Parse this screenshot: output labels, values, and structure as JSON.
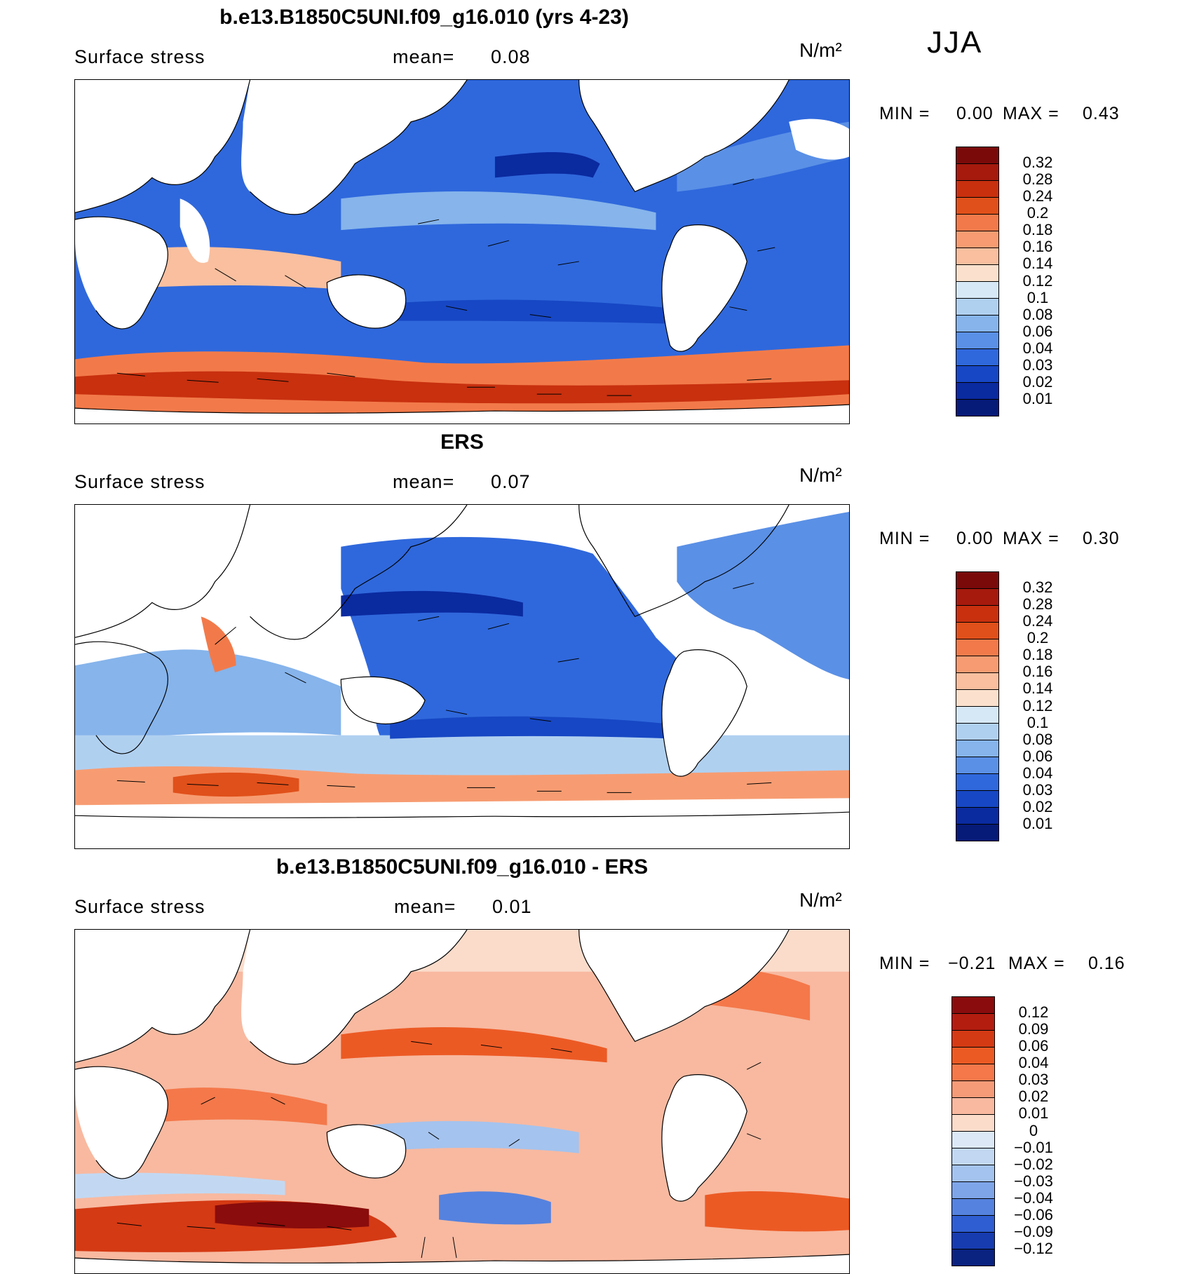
{
  "season": "JJA",
  "panels": [
    {
      "id": "model",
      "title": "b.e13.B1850C5UNI.f09_g16.010 (yrs 4-23)",
      "variable": "Surface stress",
      "mean_label": "mean=",
      "mean_value": "0.08",
      "units": "N/m²",
      "min_label": "MIN =",
      "min_value": "0.00",
      "max_label": "MAX =",
      "max_value": "0.43",
      "colorbar": {
        "ticks": [
          "0.32",
          "0.28",
          "0.24",
          "0.2",
          "0.18",
          "0.16",
          "0.14",
          "0.12",
          "0.1",
          "0.08",
          "0.06",
          "0.04",
          "0.03",
          "0.02",
          "0.01"
        ],
        "colors": [
          "#7a0a0a",
          "#a51a0d",
          "#c8300e",
          "#e0501a",
          "#f27a4a",
          "#f79c72",
          "#f9bf9f",
          "#fbe1cd",
          "#d6e8f6",
          "#b0d0f0",
          "#86b4eb",
          "#5a90e6",
          "#2f68dc",
          "#1747c4",
          "#0a2aa0",
          "#061a78"
        ]
      }
    },
    {
      "id": "obs",
      "title": "ERS",
      "variable": "Surface stress",
      "mean_label": "mean=",
      "mean_value": "0.07",
      "units": "N/m²",
      "min_label": "MIN =",
      "min_value": "0.00",
      "max_label": "MAX =",
      "max_value": "0.30",
      "colorbar": {
        "ticks": [
          "0.32",
          "0.28",
          "0.24",
          "0.2",
          "0.18",
          "0.16",
          "0.14",
          "0.12",
          "0.1",
          "0.08",
          "0.06",
          "0.04",
          "0.03",
          "0.02",
          "0.01"
        ],
        "colors": [
          "#7a0a0a",
          "#a51a0d",
          "#c8300e",
          "#e0501a",
          "#f27a4a",
          "#f79c72",
          "#f9bf9f",
          "#fbe1cd",
          "#d6e8f6",
          "#b0d0f0",
          "#86b4eb",
          "#5a90e6",
          "#2f68dc",
          "#1747c4",
          "#0a2aa0",
          "#061a78"
        ]
      }
    },
    {
      "id": "diff",
      "title": "b.e13.B1850C5UNI.f09_g16.010 - ERS",
      "variable": "Surface stress",
      "mean_label": "mean=",
      "mean_value": "0.01",
      "units": "N/m²",
      "min_label": "MIN =",
      "min_value": "−0.21",
      "max_label": "MAX =",
      "max_value": "0.16",
      "colorbar": {
        "ticks": [
          "0.12",
          "0.09",
          "0.06",
          "0.04",
          "0.03",
          "0.02",
          "0.01",
          "0",
          "−0.01",
          "−0.02",
          "−0.03",
          "−0.04",
          "−0.06",
          "−0.09",
          "−0.12"
        ],
        "colors": [
          "#8a0c0c",
          "#b31d10",
          "#d43a14",
          "#ec5a24",
          "#f4784a",
          "#f69b78",
          "#f8b9a0",
          "#fbdccb",
          "#dce8f6",
          "#c2d8f2",
          "#a4c3ee",
          "#7ea5e8",
          "#5582df",
          "#2f5ed2",
          "#173cb0",
          "#0a2380"
        ]
      }
    }
  ]
}
